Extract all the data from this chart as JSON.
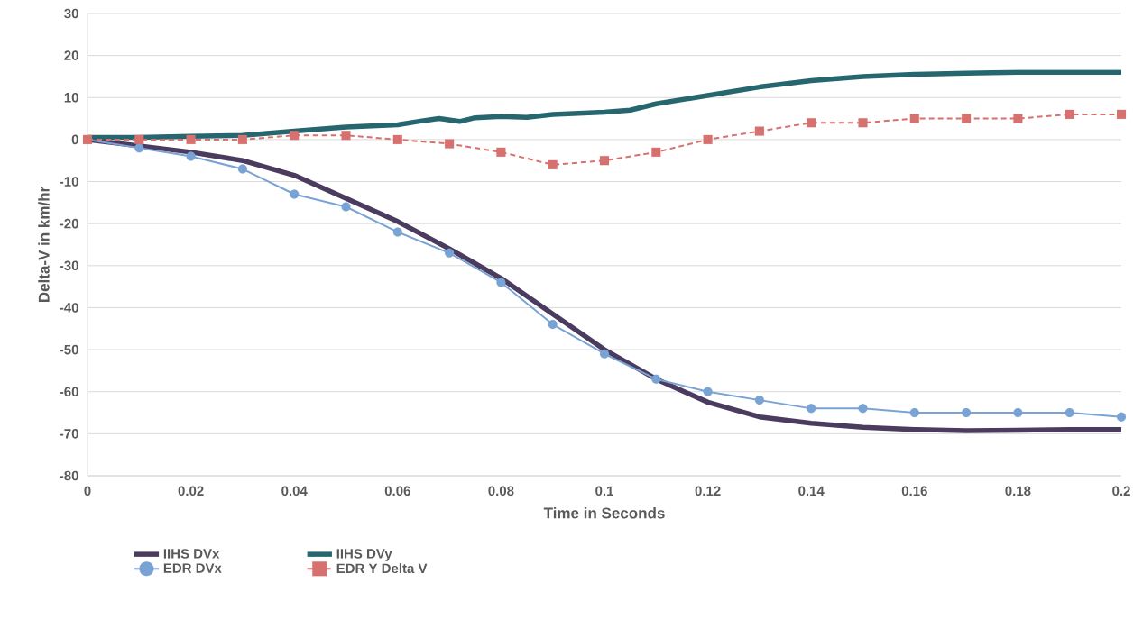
{
  "chart_data": {
    "type": "line",
    "xlabel": "Time in Seconds",
    "ylabel": "Delta-V in km/hr",
    "xlim": [
      0,
      0.2
    ],
    "ylim": [
      -80,
      30
    ],
    "xticks": [
      0,
      0.02,
      0.04,
      0.06,
      0.08,
      0.1,
      0.12,
      0.14,
      0.16,
      0.18,
      0.2
    ],
    "yticks": [
      -80,
      -70,
      -60,
      -50,
      -40,
      -30,
      -20,
      -10,
      0,
      10,
      20,
      30
    ],
    "grid": "y",
    "legend": "bottom",
    "series": [
      {
        "name": "IIHS DVx",
        "color": "#4a3b5f",
        "marker": "none",
        "line_style": "solid",
        "x": [
          0,
          0.01,
          0.02,
          0.03,
          0.04,
          0.05,
          0.06,
          0.07,
          0.08,
          0.09,
          0.1,
          0.11,
          0.12,
          0.13,
          0.14,
          0.15,
          0.16,
          0.17,
          0.18,
          0.19,
          0.2
        ],
        "values": [
          0,
          -1.5,
          -3,
          -5,
          -8.5,
          -14,
          -19.5,
          -26,
          -33,
          -41.5,
          -50,
          -57,
          -62.5,
          -66,
          -67.5,
          -68.5,
          -69,
          -69.3,
          -69.2,
          -69,
          -69
        ]
      },
      {
        "name": "IIHS DVy",
        "color": "#26666f",
        "marker": "none",
        "line_style": "solid",
        "x": [
          0,
          0.01,
          0.02,
          0.03,
          0.04,
          0.05,
          0.06,
          0.065,
          0.068,
          0.072,
          0.075,
          0.08,
          0.085,
          0.09,
          0.1,
          0.105,
          0.11,
          0.12,
          0.13,
          0.14,
          0.15,
          0.16,
          0.17,
          0.18,
          0.19,
          0.2
        ],
        "values": [
          0.5,
          0.5,
          0.8,
          1,
          2,
          3,
          3.5,
          4.5,
          5,
          4.3,
          5.2,
          5.5,
          5.3,
          6,
          6.5,
          7,
          8.5,
          10.5,
          12.5,
          14,
          15,
          15.5,
          15.8,
          16,
          16,
          16
        ]
      },
      {
        "name": "EDR DVx",
        "color": "#7aa3d5",
        "marker": "circle",
        "line_style": "solid",
        "x": [
          0,
          0.01,
          0.02,
          0.03,
          0.04,
          0.05,
          0.06,
          0.07,
          0.08,
          0.09,
          0.1,
          0.11,
          0.12,
          0.13,
          0.14,
          0.15,
          0.16,
          0.17,
          0.18,
          0.19,
          0.2
        ],
        "values": [
          0,
          -2,
          -4,
          -7,
          -13,
          -16,
          -22,
          -27,
          -34,
          -44,
          -51,
          -57,
          -60,
          -62,
          -64,
          -64,
          -65,
          -65,
          -65,
          -65,
          -66
        ]
      },
      {
        "name": "EDR Y Delta V",
        "color": "#d6716f",
        "marker": "square",
        "line_style": "dashed",
        "x": [
          0,
          0.01,
          0.02,
          0.03,
          0.04,
          0.05,
          0.06,
          0.07,
          0.08,
          0.09,
          0.1,
          0.11,
          0.12,
          0.13,
          0.14,
          0.15,
          0.16,
          0.17,
          0.18,
          0.19,
          0.2
        ],
        "values": [
          0,
          0,
          0,
          0,
          1,
          1,
          0,
          -1,
          -3,
          -6,
          -5,
          -3,
          0,
          2,
          4,
          4,
          5,
          5,
          5,
          6,
          6
        ]
      }
    ]
  }
}
